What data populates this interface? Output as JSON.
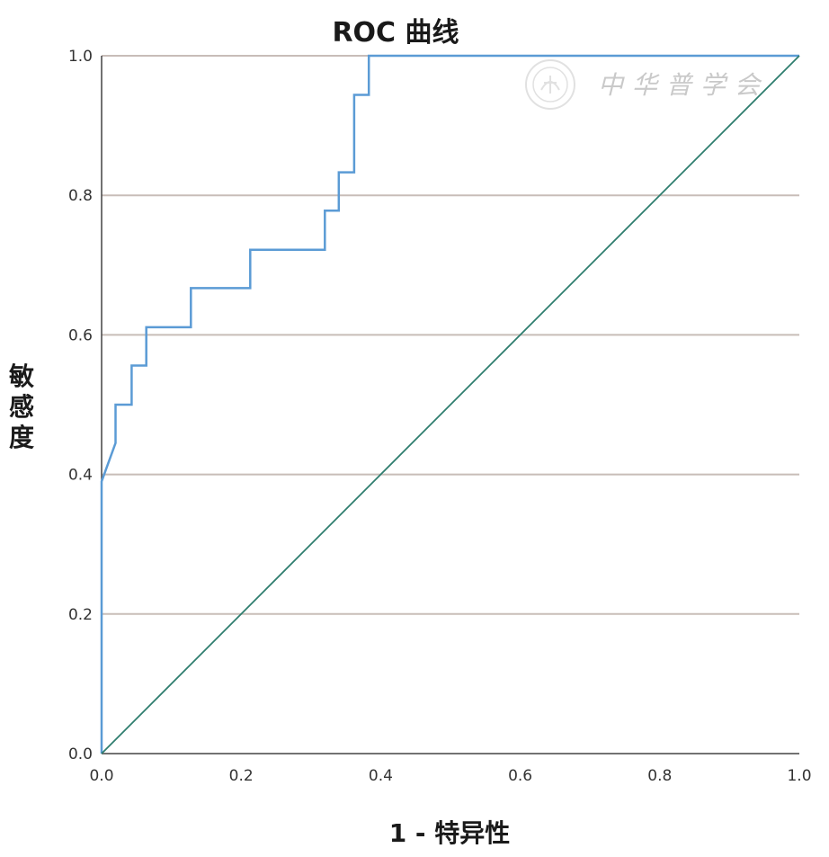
{
  "chart_data": {
    "type": "line",
    "title": "ROC 曲线",
    "xlabel": "1 - 特异性",
    "ylabel": "敏感度",
    "xlim": [
      0,
      1
    ],
    "ylim": [
      0,
      1
    ],
    "x_ticks": [
      "0.0",
      "0.2",
      "0.4",
      "0.6",
      "0.8",
      "1.0"
    ],
    "y_ticks": [
      "0.0",
      "0.2",
      "0.4",
      "0.6",
      "0.8",
      "1.0"
    ],
    "grid": "horizontal",
    "colors": {
      "roc": "#5b9bd5",
      "reference": "#2e7d6e",
      "grid": "#c8bdb8",
      "axis": "#444444"
    },
    "series": [
      {
        "key": "roc",
        "points": [
          [
            0,
            0
          ],
          [
            0,
            0.39
          ],
          [
            0.02,
            0.445
          ],
          [
            0.02,
            0.5
          ],
          [
            0.043,
            0.5
          ],
          [
            0.043,
            0.556
          ],
          [
            0.064,
            0.556
          ],
          [
            0.064,
            0.611
          ],
          [
            0.128,
            0.611
          ],
          [
            0.128,
            0.667
          ],
          [
            0.213,
            0.667
          ],
          [
            0.213,
            0.722
          ],
          [
            0.32,
            0.722
          ],
          [
            0.32,
            0.778
          ],
          [
            0.34,
            0.778
          ],
          [
            0.34,
            0.833
          ],
          [
            0.362,
            0.833
          ],
          [
            0.362,
            0.944
          ],
          [
            0.383,
            0.944
          ],
          [
            0.383,
            1
          ],
          [
            1,
            1
          ]
        ]
      },
      {
        "key": "reference",
        "points": [
          [
            0,
            0
          ],
          [
            1,
            1
          ]
        ]
      }
    ]
  },
  "watermark": {
    "text": "中华普学会",
    "icon": "seal-emblem-icon"
  }
}
